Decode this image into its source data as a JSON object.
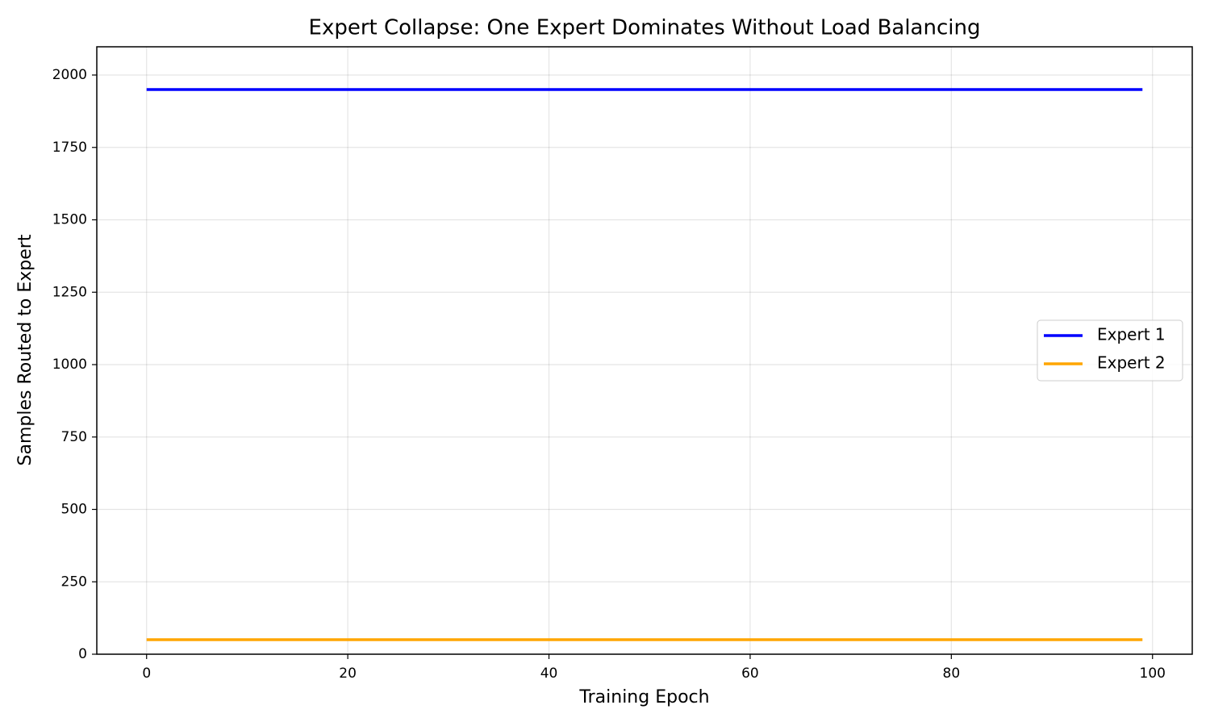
{
  "chart_data": {
    "type": "line",
    "title": "Expert Collapse: One Expert Dominates Without Load Balancing",
    "xlabel": "Training Epoch",
    "ylabel": "Samples Routed to Expert",
    "x": [
      0,
      1,
      2,
      3,
      4,
      5,
      6,
      7,
      8,
      9,
      10,
      11,
      12,
      13,
      14,
      15,
      16,
      17,
      18,
      19,
      20,
      21,
      22,
      23,
      24,
      25,
      26,
      27,
      28,
      29,
      30,
      31,
      32,
      33,
      34,
      35,
      36,
      37,
      38,
      39,
      40,
      41,
      42,
      43,
      44,
      45,
      46,
      47,
      48,
      49,
      50,
      51,
      52,
      53,
      54,
      55,
      56,
      57,
      58,
      59,
      60,
      61,
      62,
      63,
      64,
      65,
      66,
      67,
      68,
      69,
      70,
      71,
      72,
      73,
      74,
      75,
      76,
      77,
      78,
      79,
      80,
      81,
      82,
      83,
      84,
      85,
      86,
      87,
      88,
      89,
      90,
      91,
      92,
      93,
      94,
      95,
      96,
      97,
      98,
      99
    ],
    "series": [
      {
        "name": "Expert 1",
        "color": "#0000ff",
        "values": [
          1950,
          1950,
          1950,
          1950,
          1950,
          1950,
          1950,
          1950,
          1950,
          1950,
          1950,
          1950,
          1950,
          1950,
          1950,
          1950,
          1950,
          1950,
          1950,
          1950,
          1950,
          1950,
          1950,
          1950,
          1950,
          1950,
          1950,
          1950,
          1950,
          1950,
          1950,
          1950,
          1950,
          1950,
          1950,
          1950,
          1950,
          1950,
          1950,
          1950,
          1950,
          1950,
          1950,
          1950,
          1950,
          1950,
          1950,
          1950,
          1950,
          1950,
          1950,
          1950,
          1950,
          1950,
          1950,
          1950,
          1950,
          1950,
          1950,
          1950,
          1950,
          1950,
          1950,
          1950,
          1950,
          1950,
          1950,
          1950,
          1950,
          1950,
          1950,
          1950,
          1950,
          1950,
          1950,
          1950,
          1950,
          1950,
          1950,
          1950,
          1950,
          1950,
          1950,
          1950,
          1950,
          1950,
          1950,
          1950,
          1950,
          1950,
          1950,
          1950,
          1950,
          1950,
          1950,
          1950,
          1950,
          1950,
          1950,
          1950
        ]
      },
      {
        "name": "Expert 2",
        "color": "#ffa500",
        "values": [
          50,
          50,
          50,
          50,
          50,
          50,
          50,
          50,
          50,
          50,
          50,
          50,
          50,
          50,
          50,
          50,
          50,
          50,
          50,
          50,
          50,
          50,
          50,
          50,
          50,
          50,
          50,
          50,
          50,
          50,
          50,
          50,
          50,
          50,
          50,
          50,
          50,
          50,
          50,
          50,
          50,
          50,
          50,
          50,
          50,
          50,
          50,
          50,
          50,
          50,
          50,
          50,
          50,
          50,
          50,
          50,
          50,
          50,
          50,
          50,
          50,
          50,
          50,
          50,
          50,
          50,
          50,
          50,
          50,
          50,
          50,
          50,
          50,
          50,
          50,
          50,
          50,
          50,
          50,
          50,
          50,
          50,
          50,
          50,
          50,
          50,
          50,
          50,
          50,
          50,
          50,
          50,
          50,
          50,
          50,
          50,
          50,
          50,
          50,
          50
        ]
      }
    ],
    "xlim": [
      -4.95,
      103.95
    ],
    "xticks": [
      0,
      20,
      40,
      60,
      80,
      100
    ],
    "ylim": [
      0,
      2097.5
    ],
    "yticks": [
      0,
      250,
      500,
      750,
      1000,
      1250,
      1500,
      1750,
      2000
    ],
    "grid": true,
    "legend": "center right"
  }
}
